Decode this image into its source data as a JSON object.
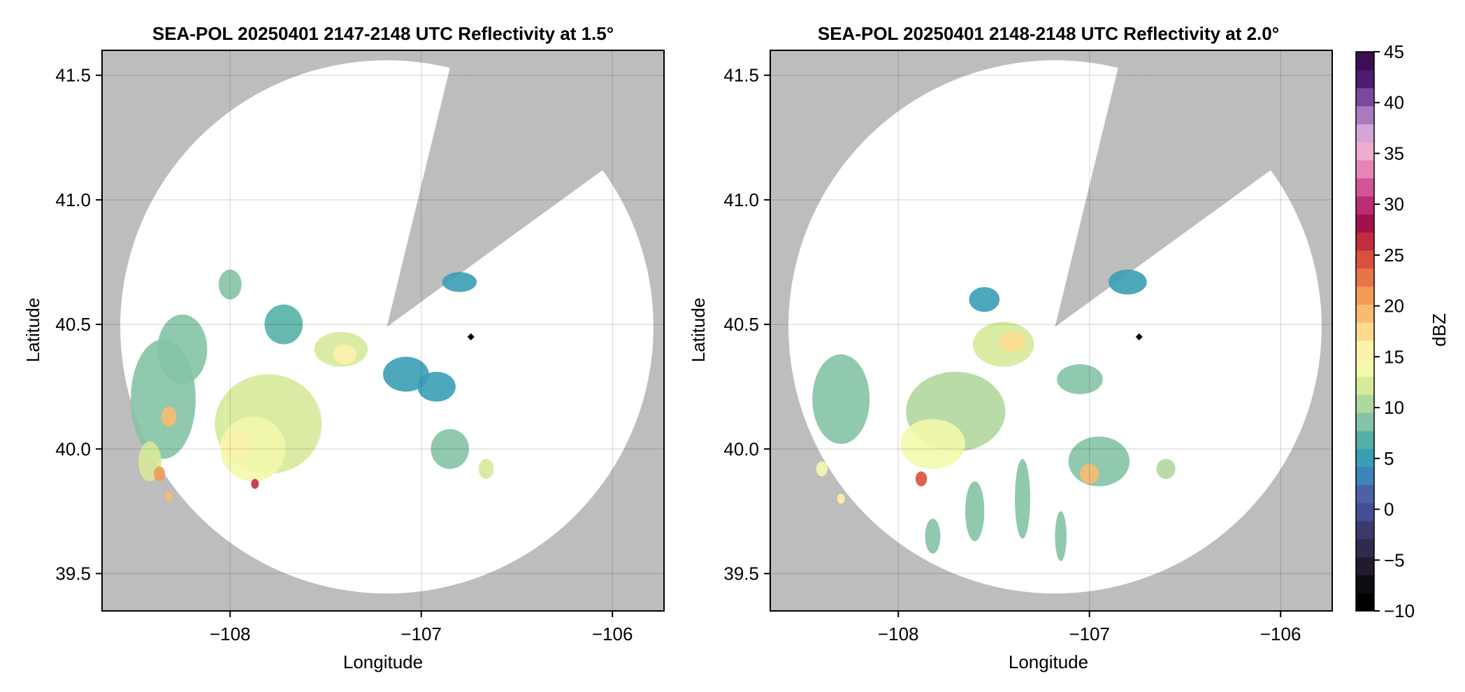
{
  "chart_data": [
    {
      "type": "heatmap",
      "title": "SEA-POL 20250401 2147-2148 UTC Reflectivity at 1.5°",
      "xlabel": "Longitude",
      "ylabel": "Latitude",
      "xlim": [
        -108.67,
        -105.73
      ],
      "ylim": [
        39.35,
        41.6
      ],
      "xticks": [
        -108,
        -107,
        -106
      ],
      "xtick_labels": [
        "−108",
        "−107",
        "−106"
      ],
      "yticks": [
        39.5,
        40.0,
        40.5,
        41.0,
        41.5
      ],
      "ytick_labels": [
        "39.5",
        "40.0",
        "40.5",
        "41.0",
        "41.5"
      ],
      "grid": true,
      "background_color": "#bdbdbd",
      "coverage_color": "#ffffff",
      "radar_site": {
        "lon": -107.18,
        "lat": 40.49,
        "range_deg_lat": 1.07
      },
      "blocked_sector_vertices": [
        [
          -106.85,
          41.53
        ],
        [
          -106.05,
          41.12
        ]
      ],
      "marker": {
        "lon": -106.74,
        "lat": 40.45
      },
      "echo_cells": [
        {
          "lon": -108.35,
          "lat": 40.2,
          "rx": 0.17,
          "ry": 0.24,
          "dbz": 16
        },
        {
          "lon": -108.25,
          "lat": 40.4,
          "rx": 0.13,
          "ry": 0.14,
          "dbz": 16
        },
        {
          "lon": -108.42,
          "lat": 39.95,
          "rx": 0.06,
          "ry": 0.08,
          "dbz": 22
        },
        {
          "lon": -108.32,
          "lat": 40.13,
          "rx": 0.04,
          "ry": 0.04,
          "dbz": 30
        },
        {
          "lon": -108.37,
          "lat": 39.9,
          "rx": 0.03,
          "ry": 0.03,
          "dbz": 33
        },
        {
          "lon": -108.32,
          "lat": 39.81,
          "rx": 0.02,
          "ry": 0.02,
          "dbz": 30
        },
        {
          "lon": -108.0,
          "lat": 40.66,
          "rx": 0.06,
          "ry": 0.06,
          "dbz": 15
        },
        {
          "lon": -107.8,
          "lat": 40.1,
          "rx": 0.28,
          "ry": 0.2,
          "dbz": 21
        },
        {
          "lon": -107.88,
          "lat": 40.0,
          "rx": 0.17,
          "ry": 0.13,
          "dbz": 24
        },
        {
          "lon": -107.97,
          "lat": 40.02,
          "rx": 0.08,
          "ry": 0.06,
          "dbz": 26
        },
        {
          "lon": -107.87,
          "lat": 39.86,
          "rx": 0.02,
          "ry": 0.02,
          "dbz": 40
        },
        {
          "lon": -107.72,
          "lat": 40.5,
          "rx": 0.1,
          "ry": 0.08,
          "dbz": 14
        },
        {
          "lon": -107.42,
          "lat": 40.4,
          "rx": 0.14,
          "ry": 0.07,
          "dbz": 22
        },
        {
          "lon": -107.4,
          "lat": 40.38,
          "rx": 0.06,
          "ry": 0.04,
          "dbz": 27
        },
        {
          "lon": -107.08,
          "lat": 40.3,
          "rx": 0.12,
          "ry": 0.07,
          "dbz": 12
        },
        {
          "lon": -106.92,
          "lat": 40.25,
          "rx": 0.1,
          "ry": 0.06,
          "dbz": 10
        },
        {
          "lon": -106.85,
          "lat": 40.0,
          "rx": 0.1,
          "ry": 0.08,
          "dbz": 15
        },
        {
          "lon": -106.66,
          "lat": 39.92,
          "rx": 0.04,
          "ry": 0.04,
          "dbz": 21
        },
        {
          "lon": -106.8,
          "lat": 40.67,
          "rx": 0.09,
          "ry": 0.04,
          "dbz": 11
        }
      ]
    },
    {
      "type": "heatmap",
      "title": "SEA-POL 20250401 2148-2148 UTC Reflectivity at 2.0°",
      "xlabel": "Longitude",
      "ylabel": "Latitude",
      "xlim": [
        -108.67,
        -105.73
      ],
      "ylim": [
        39.35,
        41.6
      ],
      "xticks": [
        -108,
        -107,
        -106
      ],
      "xtick_labels": [
        "−108",
        "−107",
        "−106"
      ],
      "yticks": [
        39.5,
        40.0,
        40.5,
        41.0,
        41.5
      ],
      "ytick_labels": [
        "39.5",
        "40.0",
        "40.5",
        "41.0",
        "41.5"
      ],
      "grid": true,
      "background_color": "#bdbdbd",
      "coverage_color": "#ffffff",
      "radar_site": {
        "lon": -107.18,
        "lat": 40.49,
        "range_deg_lat": 1.07
      },
      "blocked_sector_vertices": [
        [
          -106.85,
          41.53
        ],
        [
          -106.05,
          41.12
        ]
      ],
      "marker": {
        "lon": -106.74,
        "lat": 40.45
      },
      "echo_cells": [
        {
          "lon": -108.3,
          "lat": 40.2,
          "rx": 0.15,
          "ry": 0.18,
          "dbz": 16
        },
        {
          "lon": -108.4,
          "lat": 39.92,
          "rx": 0.03,
          "ry": 0.03,
          "dbz": 24
        },
        {
          "lon": -108.3,
          "lat": 39.8,
          "rx": 0.02,
          "ry": 0.02,
          "dbz": 26
        },
        {
          "lon": -107.7,
          "lat": 40.15,
          "rx": 0.26,
          "ry": 0.16,
          "dbz": 19
        },
        {
          "lon": -107.82,
          "lat": 40.02,
          "rx": 0.17,
          "ry": 0.1,
          "dbz": 23
        },
        {
          "lon": -107.88,
          "lat": 39.88,
          "rx": 0.03,
          "ry": 0.03,
          "dbz": 38
        },
        {
          "lon": -107.45,
          "lat": 40.42,
          "rx": 0.16,
          "ry": 0.09,
          "dbz": 21
        },
        {
          "lon": -107.4,
          "lat": 40.43,
          "rx": 0.07,
          "ry": 0.04,
          "dbz": 28
        },
        {
          "lon": -107.55,
          "lat": 40.6,
          "rx": 0.08,
          "ry": 0.05,
          "dbz": 12
        },
        {
          "lon": -107.05,
          "lat": 40.28,
          "rx": 0.12,
          "ry": 0.06,
          "dbz": 15
        },
        {
          "lon": -106.95,
          "lat": 39.95,
          "rx": 0.16,
          "ry": 0.1,
          "dbz": 17
        },
        {
          "lon": -107.0,
          "lat": 39.9,
          "rx": 0.05,
          "ry": 0.04,
          "dbz": 30
        },
        {
          "lon": -106.8,
          "lat": 40.67,
          "rx": 0.1,
          "ry": 0.05,
          "dbz": 12
        },
        {
          "lon": -106.6,
          "lat": 39.92,
          "rx": 0.05,
          "ry": 0.04,
          "dbz": 18
        },
        {
          "lon": -107.6,
          "lat": 39.75,
          "rx": 0.05,
          "ry": 0.12,
          "dbz": 16
        },
        {
          "lon": -107.35,
          "lat": 39.8,
          "rx": 0.04,
          "ry": 0.16,
          "dbz": 17
        },
        {
          "lon": -107.15,
          "lat": 39.65,
          "rx": 0.03,
          "ry": 0.1,
          "dbz": 16
        },
        {
          "lon": -107.82,
          "lat": 39.65,
          "rx": 0.04,
          "ry": 0.07,
          "dbz": 16
        }
      ]
    }
  ],
  "colorbar": {
    "label": "dBZ",
    "min": -10,
    "max": 45,
    "step": 2.5,
    "ticks": [
      -10,
      -5,
      0,
      5,
      10,
      15,
      20,
      25,
      30,
      35,
      40,
      45
    ],
    "tick_labels": [
      "−10",
      "−5",
      "0",
      "5",
      "10",
      "15",
      "20",
      "25",
      "30",
      "35",
      "40",
      "45"
    ],
    "colors": [
      "#000000",
      "#0f0c13",
      "#221a2e",
      "#302a4c",
      "#3c3a6d",
      "#454e92",
      "#4a62a6",
      "#3d84b8",
      "#3a9eb4",
      "#55b1a6",
      "#84c3a5",
      "#b0d79e",
      "#d6ea99",
      "#f3f8ab",
      "#fcf2ad",
      "#fcdb8e",
      "#f9bb6f",
      "#f39a55",
      "#e87547",
      "#d8513c",
      "#c32c3e",
      "#a2124a",
      "#bc2d73",
      "#d45596",
      "#e685b6",
      "#eeaccf",
      "#d4a5d6",
      "#a97bbd",
      "#7a4aa0",
      "#4d1c70",
      "#3b0f50"
    ]
  }
}
